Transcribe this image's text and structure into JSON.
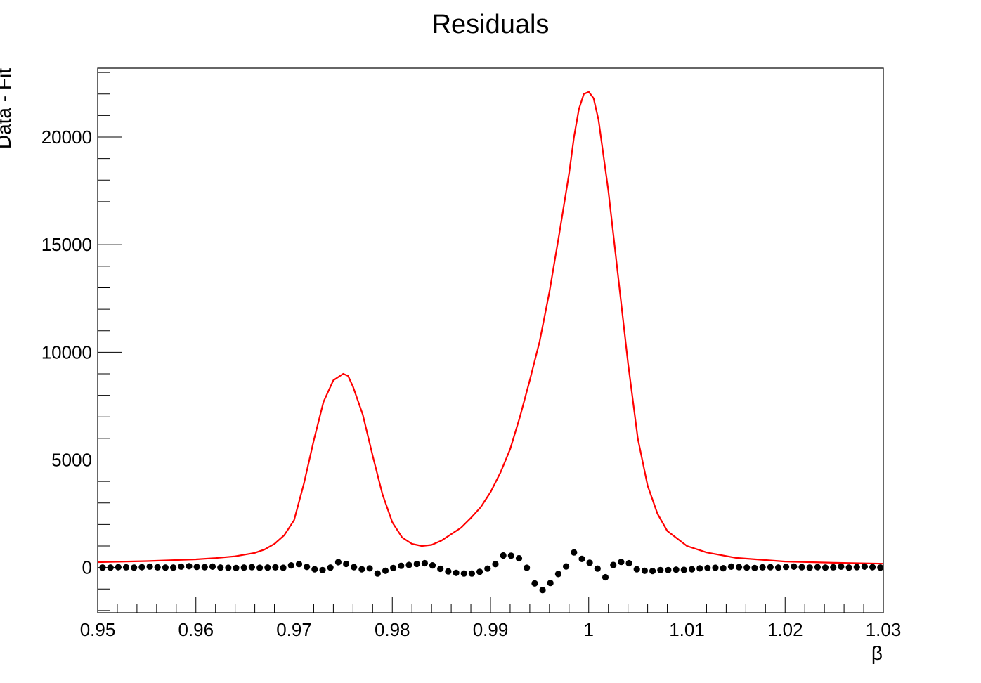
{
  "chart_data": {
    "type": "scatter",
    "title": "Residuals",
    "xlabel": "β",
    "ylabel": "Data - Fit",
    "xlim": [
      0.95,
      1.03
    ],
    "ylim": [
      -2100,
      23200
    ],
    "x_ticks": [
      "0.95",
      "0.96",
      "0.97",
      "0.98",
      "0.99",
      "1",
      "1.01",
      "1.02",
      "1.03"
    ],
    "y_ticks": [
      "0",
      "5000",
      "10000",
      "15000",
      "20000"
    ],
    "grid": false,
    "legend": "none",
    "series": [
      {
        "kind": "points",
        "color": "#000000",
        "x": [
          0.9505,
          0.9513,
          0.9521,
          0.9529,
          0.9537,
          0.9545,
          0.9553,
          0.9561,
          0.9569,
          0.9577,
          0.9585,
          0.9593,
          0.9601,
          0.9609,
          0.9617,
          0.9625,
          0.9633,
          0.9641,
          0.9649,
          0.9657,
          0.9665,
          0.9673,
          0.9681,
          0.9689,
          0.9697,
          0.9705,
          0.9713,
          0.9721,
          0.9729,
          0.9737,
          0.9745,
          0.9753,
          0.9761,
          0.9769,
          0.9777,
          0.9785,
          0.9793,
          0.9801,
          0.9809,
          0.9817,
          0.9825,
          0.9833,
          0.9841,
          0.9849,
          0.9857,
          0.9865,
          0.9873,
          0.9881,
          0.9889,
          0.9897,
          0.9905,
          0.9913,
          0.9921,
          0.9929,
          0.9937,
          0.9945,
          0.9953,
          0.9961,
          0.9969,
          0.9977,
          0.9985,
          0.9993,
          1.0001,
          1.0009,
          1.0017,
          1.0025,
          1.0033,
          1.0041,
          1.0049,
          1.0057,
          1.0065,
          1.0073,
          1.0081,
          1.0089,
          1.0097,
          1.0105,
          1.0113,
          1.0121,
          1.0129,
          1.0137,
          1.0145,
          1.0153,
          1.0161,
          1.0169,
          1.0177,
          1.0185,
          1.0193,
          1.0201,
          1.0209,
          1.0217,
          1.0225,
          1.0233,
          1.0241,
          1.0249,
          1.0257,
          1.0265,
          1.0273,
          1.0281,
          1.0289,
          1.0297
        ],
        "y": [
          0,
          0,
          20,
          10,
          0,
          20,
          40,
          10,
          0,
          0,
          40,
          60,
          30,
          20,
          40,
          0,
          -10,
          -20,
          0,
          20,
          -10,
          0,
          10,
          -10,
          100,
          160,
          30,
          -80,
          -120,
          0,
          250,
          170,
          20,
          -80,
          -40,
          -280,
          -150,
          -20,
          80,
          120,
          170,
          200,
          100,
          -60,
          -180,
          -250,
          -280,
          -280,
          -200,
          -50,
          160,
          560,
          550,
          430,
          -10,
          -740,
          -1050,
          -720,
          -300,
          50,
          700,
          400,
          220,
          -50,
          -450,
          120,
          260,
          200,
          -80,
          -150,
          -160,
          -120,
          -120,
          -100,
          -110,
          -80,
          -40,
          -20,
          -10,
          -30,
          40,
          20,
          0,
          -20,
          10,
          20,
          0,
          30,
          40,
          20,
          0,
          20,
          0,
          10,
          40,
          0,
          20,
          40,
          20,
          0
        ]
      },
      {
        "kind": "curve",
        "color": "#ff0000",
        "x": [
          0.95,
          0.955,
          0.96,
          0.962,
          0.964,
          0.966,
          0.967,
          0.968,
          0.969,
          0.97,
          0.971,
          0.972,
          0.973,
          0.974,
          0.975,
          0.9755,
          0.976,
          0.977,
          0.978,
          0.979,
          0.98,
          0.981,
          0.982,
          0.983,
          0.984,
          0.985,
          0.986,
          0.987,
          0.988,
          0.989,
          0.99,
          0.991,
          0.992,
          0.993,
          0.994,
          0.995,
          0.996,
          0.997,
          0.998,
          0.9985,
          0.999,
          0.9995,
          1.0,
          1.0005,
          1.001,
          1.002,
          1.003,
          1.004,
          1.005,
          1.006,
          1.007,
          1.008,
          1.01,
          1.012,
          1.015,
          1.02,
          1.025,
          1.03
        ],
        "y": [
          250,
          300,
          380,
          440,
          520,
          680,
          840,
          1100,
          1500,
          2200,
          3900,
          5900,
          7700,
          8700,
          9000,
          8900,
          8400,
          7100,
          5200,
          3400,
          2100,
          1400,
          1100,
          1000,
          1050,
          1250,
          1550,
          1850,
          2300,
          2800,
          3500,
          4400,
          5500,
          7000,
          8700,
          10500,
          12800,
          15500,
          18300,
          20000,
          21300,
          22000,
          22100,
          21800,
          20800,
          17500,
          13500,
          9500,
          6000,
          3800,
          2500,
          1700,
          1000,
          700,
          450,
          280,
          220,
          180
        ]
      }
    ]
  }
}
